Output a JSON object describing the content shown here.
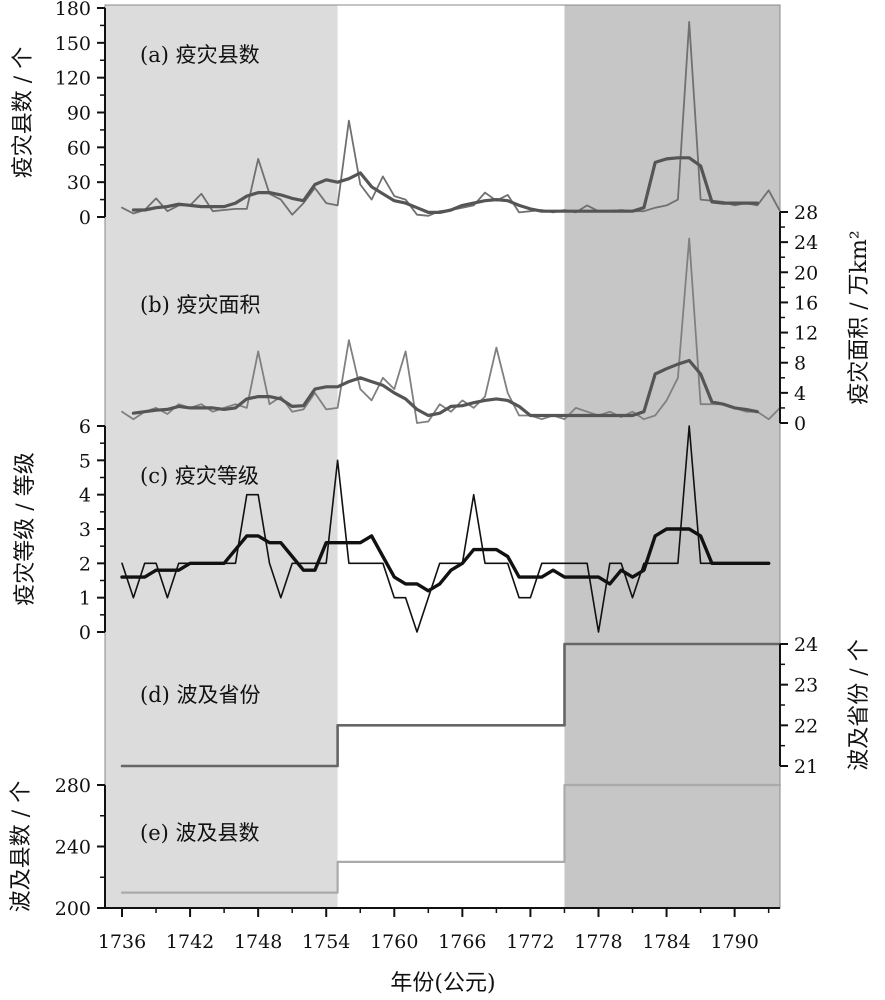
{
  "chart_data": {
    "type": "line",
    "x_axis": {
      "label": "年份(公元)",
      "range": [
        1734.5,
        1794
      ],
      "ticks": [
        "1736",
        "1742",
        "1748",
        "1754",
        "1760",
        "1766",
        "1772",
        "1778",
        "1784",
        "1790"
      ]
    },
    "shaded_periods": [
      {
        "from": 1734.5,
        "to": 1755,
        "color": "#dcdcdc"
      },
      {
        "from": 1775,
        "to": 1794,
        "color": "#c6c6c6"
      }
    ],
    "panels": [
      {
        "id": "a",
        "label": "(a) 疫灾县数",
        "ylabel": "疫灾县数 / 个",
        "axis_side": "left",
        "ylim": [
          0,
          180
        ],
        "ticks": [
          "0",
          "30",
          "60",
          "90",
          "120",
          "150",
          "180"
        ],
        "series": [
          {
            "x": [
              1736,
              1737,
              1738,
              1739,
              1740,
              1741,
              1742,
              1743,
              1744,
              1745,
              1746,
              1747,
              1748,
              1749,
              1750,
              1751,
              1752,
              1753,
              1754,
              1755,
              1756,
              1757,
              1758,
              1759,
              1760,
              1761,
              1762,
              1763,
              1764,
              1765,
              1766,
              1767,
              1768,
              1769,
              1770,
              1771,
              1772,
              1773,
              1774,
              1775,
              1776,
              1777,
              1778,
              1779,
              1780,
              1781,
              1782,
              1783,
              1784,
              1785,
              1786,
              1787,
              1788,
              1789,
              1790,
              1791,
              1792,
              1793,
              1794
            ],
            "values": [
              8,
              3,
              6,
              16,
              5,
              10,
              10,
              20,
              5,
              6,
              7,
              7,
              50,
              20,
              15,
              2,
              12,
              25,
              12,
              10,
              83,
              28,
              15,
              35,
              18,
              15,
              2,
              1,
              5,
              6,
              8,
              10,
              21,
              14,
              19,
              4,
              5,
              6,
              4,
              6,
              4,
              10,
              5,
              5,
              6,
              5,
              5,
              8,
              10,
              15,
              168,
              15,
              14,
              13,
              10,
              12,
              10,
              23,
              5
            ],
            "color": "#707070",
            "width": 1.8
          },
          {
            "x": [
              1737,
              1738,
              1739,
              1740,
              1741,
              1742,
              1743,
              1744,
              1745,
              1746,
              1747,
              1748,
              1749,
              1750,
              1751,
              1752,
              1753,
              1754,
              1755,
              1756,
              1757,
              1758,
              1759,
              1760,
              1761,
              1762,
              1763,
              1764,
              1765,
              1766,
              1767,
              1768,
              1769,
              1770,
              1771,
              1772,
              1773,
              1774,
              1775,
              1776,
              1777,
              1778,
              1779,
              1780,
              1781,
              1782,
              1783,
              1784,
              1785,
              1786,
              1787,
              1788,
              1789,
              1790,
              1791,
              1792
            ],
            "values": [
              6,
              6,
              8,
              9,
              11,
              10,
              9,
              9,
              9,
              12,
              18,
              21,
              21,
              19,
              16,
              14,
              28,
              32,
              30,
              33,
              38,
              26,
              20,
              14,
              12,
              8,
              4,
              4,
              6,
              10,
              12,
              14,
              15,
              14,
              10,
              7,
              5,
              5,
              5,
              5,
              5,
              5,
              5,
              5,
              5,
              8,
              47,
              50,
              51,
              51,
              44,
              13,
              12,
              12,
              12,
              12
            ],
            "color": "#555555",
            "width": 3.2
          }
        ]
      },
      {
        "id": "b",
        "label": "(b) 疫灾面积",
        "ylabel": "疫灾面积 / 万km²",
        "axis_side": "right",
        "ylim": [
          0,
          28
        ],
        "ticks": [
          "0",
          "4",
          "8",
          "12",
          "16",
          "20",
          "24",
          "28"
        ],
        "series": [
          {
            "x": [
              1736,
              1737,
              1738,
              1739,
              1740,
              1741,
              1742,
              1743,
              1744,
              1745,
              1746,
              1747,
              1748,
              1749,
              1750,
              1751,
              1752,
              1753,
              1754,
              1755,
              1756,
              1757,
              1758,
              1759,
              1760,
              1761,
              1762,
              1763,
              1764,
              1765,
              1766,
              1767,
              1768,
              1769,
              1770,
              1771,
              1772,
              1773,
              1774,
              1775,
              1776,
              1777,
              1778,
              1779,
              1780,
              1781,
              1782,
              1783,
              1784,
              1785,
              1786,
              1787,
              1788,
              1789,
              1790,
              1791,
              1792,
              1793,
              1794
            ],
            "values": [
              1.5,
              0.5,
              1.5,
              2,
              1.2,
              2.5,
              2,
              2.5,
              1.5,
              2,
              2.5,
              2,
              9.5,
              2.5,
              3.5,
              1.5,
              1.8,
              4,
              1.8,
              2,
              11,
              4.5,
              3,
              6,
              4.5,
              9.5,
              0,
              0.2,
              2.5,
              1.5,
              3,
              2,
              3.5,
              10,
              4,
              1,
              1,
              0.5,
              1,
              0.5,
              2,
              1.5,
              1,
              1.5,
              0.8,
              1.5,
              0.5,
              1,
              3,
              6,
              24.5,
              2.5,
              2.5,
              2.5,
              2,
              1.5,
              1.5,
              0.5,
              2
            ],
            "color": "#808080",
            "width": 1.8
          },
          {
            "x": [
              1737,
              1738,
              1739,
              1740,
              1741,
              1742,
              1743,
              1744,
              1745,
              1746,
              1747,
              1748,
              1749,
              1750,
              1751,
              1752,
              1753,
              1754,
              1755,
              1756,
              1757,
              1758,
              1759,
              1760,
              1761,
              1762,
              1763,
              1764,
              1765,
              1766,
              1767,
              1768,
              1769,
              1770,
              1771,
              1772,
              1773,
              1774,
              1775,
              1776,
              1777,
              1778,
              1779,
              1780,
              1781,
              1782,
              1783,
              1784,
              1785,
              1786,
              1787,
              1788,
              1789,
              1790,
              1791,
              1792
            ],
            "values": [
              1.3,
              1.5,
              1.7,
              1.8,
              2.2,
              2,
              2,
              2,
              1.8,
              2,
              3.2,
              3.5,
              3.5,
              3.2,
              2.2,
              2.3,
              4.5,
              4.8,
              4.8,
              5.5,
              6,
              5.5,
              5,
              4,
              3.2,
              1.8,
              1,
              1.3,
              2.2,
              2.3,
              2.7,
              3,
              3.2,
              3,
              2.2,
              1,
              1,
              1,
              1,
              1,
              1,
              1,
              1,
              1,
              1,
              1.5,
              6.5,
              7.2,
              7.8,
              8.3,
              6.5,
              2.8,
              2.5,
              2,
              1.8,
              1.5
            ],
            "color": "#555555",
            "width": 3.2
          }
        ]
      },
      {
        "id": "c",
        "label": "(c) 疫灾等级",
        "ylabel": "疫灾等级 / 等级",
        "axis_side": "left",
        "ylim": [
          0,
          6
        ],
        "ticks": [
          "0",
          "1",
          "2",
          "3",
          "4",
          "5",
          "6"
        ],
        "series": [
          {
            "x": [
              1736,
              1737,
              1738,
              1739,
              1740,
              1741,
              1742,
              1743,
              1744,
              1745,
              1746,
              1747,
              1748,
              1749,
              1750,
              1751,
              1752,
              1753,
              1754,
              1755,
              1756,
              1757,
              1758,
              1759,
              1760,
              1761,
              1762,
              1763,
              1764,
              1765,
              1766,
              1767,
              1768,
              1769,
              1770,
              1771,
              1772,
              1773,
              1774,
              1775,
              1776,
              1777,
              1778,
              1779,
              1780,
              1781,
              1782,
              1783,
              1784,
              1785,
              1786,
              1787,
              1788,
              1789,
              1790,
              1791,
              1792,
              1793
            ],
            "values": [
              2,
              1,
              2,
              2,
              1,
              2,
              2,
              2,
              2,
              2,
              2,
              4,
              4,
              2,
              1,
              2,
              2,
              2,
              2,
              5,
              2,
              2,
              2,
              2,
              1,
              1,
              0,
              1,
              2,
              2,
              2,
              4,
              2,
              2,
              2,
              1,
              1,
              2,
              2,
              2,
              2,
              2,
              0,
              2,
              2,
              1,
              2,
              2,
              2,
              2,
              6,
              2,
              2,
              2,
              2,
              2,
              2,
              2
            ],
            "color": "#111111",
            "width": 1.6
          },
          {
            "x": [
              1736,
              1737,
              1738,
              1739,
              1740,
              1741,
              1742,
              1743,
              1744,
              1745,
              1746,
              1747,
              1748,
              1749,
              1750,
              1751,
              1752,
              1753,
              1754,
              1755,
              1756,
              1757,
              1758,
              1759,
              1760,
              1761,
              1762,
              1763,
              1764,
              1765,
              1766,
              1767,
              1768,
              1769,
              1770,
              1771,
              1772,
              1773,
              1774,
              1775,
              1776,
              1777,
              1778,
              1779,
              1780,
              1781,
              1782,
              1783,
              1784,
              1785,
              1786,
              1787,
              1788,
              1789,
              1790,
              1791,
              1792,
              1793
            ],
            "values": [
              1.6,
              1.6,
              1.6,
              1.8,
              1.8,
              1.8,
              2,
              2,
              2,
              2,
              2.4,
              2.8,
              2.8,
              2.6,
              2.6,
              2.2,
              1.8,
              1.8,
              2.6,
              2.6,
              2.6,
              2.6,
              2.8,
              2.2,
              1.6,
              1.4,
              1.4,
              1.2,
              1.4,
              1.8,
              2.0,
              2.4,
              2.4,
              2.4,
              2.2,
              1.6,
              1.6,
              1.6,
              1.8,
              1.6,
              1.6,
              1.6,
              1.6,
              1.4,
              1.8,
              1.6,
              1.8,
              2.8,
              3.0,
              3.0,
              3.0,
              2.8,
              2.0,
              2.0,
              2.0,
              2.0,
              2.0,
              2.0
            ],
            "color": "#111111",
            "width": 3.4
          }
        ]
      },
      {
        "id": "d",
        "label": "(d) 波及省份",
        "ylabel": "波及省份 / 个",
        "axis_side": "right",
        "ylim": [
          21,
          24
        ],
        "ticks": [
          "21",
          "22",
          "23",
          "24"
        ],
        "series": [
          {
            "type": "step",
            "segments": [
              {
                "from": 1736,
                "to": 1755,
                "value": 21
              },
              {
                "from": 1755,
                "to": 1775,
                "value": 22
              },
              {
                "from": 1775,
                "to": 1794,
                "value": 24
              }
            ],
            "color": "#666666",
            "width": 2.6
          }
        ]
      },
      {
        "id": "e",
        "label": "(e) 波及县数",
        "ylabel": "波及县数 / 个",
        "axis_side": "left",
        "ylim": [
          200,
          280
        ],
        "ticks": [
          "200",
          "240",
          "280"
        ],
        "series": [
          {
            "type": "step",
            "segments": [
              {
                "from": 1736,
                "to": 1755,
                "value": 210
              },
              {
                "from": 1755,
                "to": 1775,
                "value": 230
              },
              {
                "from": 1775,
                "to": 1794,
                "value": 280
              }
            ],
            "color": "#aaaaaa",
            "width": 2.2
          }
        ]
      }
    ]
  }
}
